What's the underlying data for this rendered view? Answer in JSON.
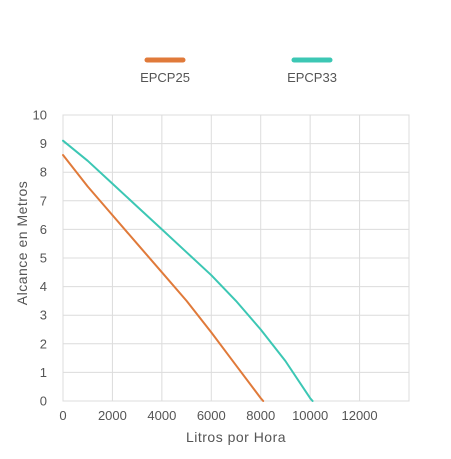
{
  "chart_data": {
    "type": "line",
    "xlabel": "Litros por Hora",
    "ylabel": "Alcance en Metros",
    "xlim": [
      0,
      14000
    ],
    "ylim": [
      0,
      10
    ],
    "x_ticks": [
      0,
      2000,
      4000,
      6000,
      8000,
      10000,
      12000
    ],
    "y_ticks": [
      0,
      1,
      2,
      3,
      4,
      5,
      6,
      7,
      8,
      9,
      10
    ],
    "grid": true,
    "legend_position": "top",
    "series": [
      {
        "name": "EPCP25",
        "color": "#e07a3a",
        "x": [
          0,
          1000,
          2000,
          3000,
          4000,
          5000,
          6000,
          7000,
          8000,
          8100
        ],
        "y": [
          8.6,
          7.5,
          6.5,
          5.5,
          4.5,
          3.5,
          2.4,
          1.25,
          0.1,
          0
        ]
      },
      {
        "name": "EPCP33",
        "color": "#3cc7b4",
        "x": [
          0,
          1000,
          2000,
          3000,
          4000,
          5000,
          6000,
          7000,
          8000,
          9000,
          10000,
          10100
        ],
        "y": [
          9.1,
          8.4,
          7.6,
          6.8,
          6.0,
          5.2,
          4.4,
          3.5,
          2.5,
          1.4,
          0.1,
          0
        ]
      }
    ]
  }
}
